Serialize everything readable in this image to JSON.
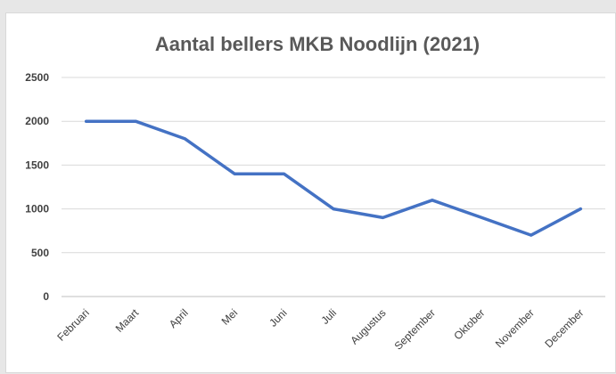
{
  "chart_data": {
    "type": "line",
    "title": "Aantal bellers MKB Noodlijn (2021)",
    "categories": [
      "Februari",
      "Maart",
      "April",
      "Mei",
      "Juni",
      "Juli",
      "Augustus",
      "September",
      "Oktober",
      "November",
      "December"
    ],
    "series": [
      {
        "values": [
          2000,
          2000,
          1800,
          1400,
          1400,
          1000,
          900,
          1100,
          900,
          700,
          1000
        ],
        "color": "#4472C4"
      }
    ],
    "ylim": [
      0,
      2500
    ],
    "yticks": [
      "0",
      "500",
      "1000",
      "1500",
      "2000",
      "2500"
    ],
    "grid": true,
    "legend": "none"
  }
}
